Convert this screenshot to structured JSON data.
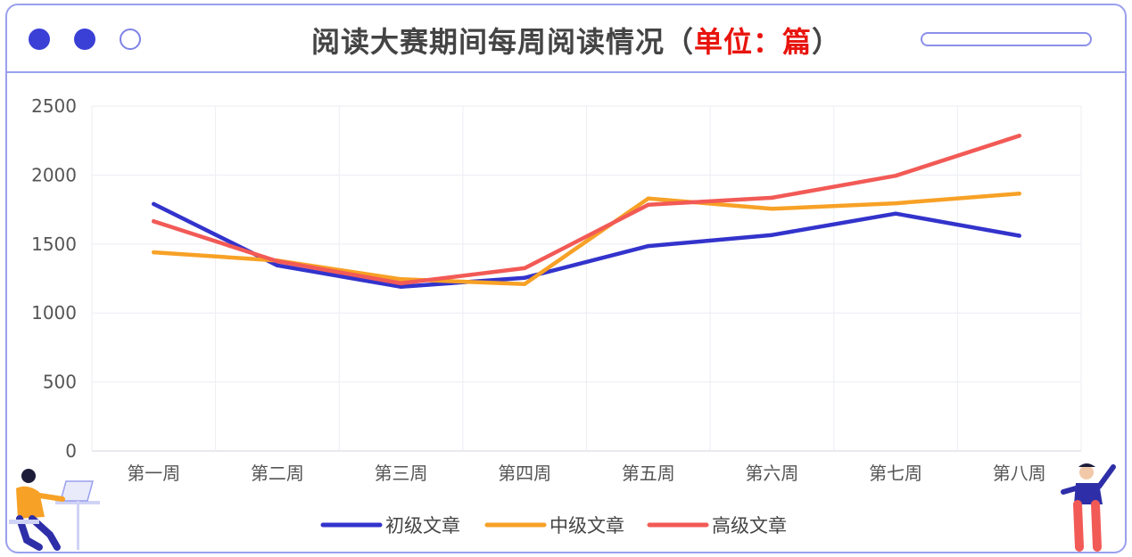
{
  "header": {
    "title_main": "阅读大赛期间每周阅读情况",
    "title_open": "（",
    "title_unit": "单位：",
    "title_unit_value": "篇",
    "title_close": "）"
  },
  "colors": {
    "frame": "#9aa0ee",
    "accent_dot": "#3a3fd6",
    "title_red": "#e8140d"
  },
  "chart_data": {
    "type": "line",
    "title": "阅读大赛期间每周阅读情况（单位：篇）",
    "categories": [
      "第一周",
      "第二周",
      "第三周",
      "第四周",
      "第五周",
      "第六周",
      "第七周",
      "第八周"
    ],
    "ylim": [
      0,
      2500
    ],
    "yticks": [
      0,
      500,
      1000,
      1500,
      2000,
      2500
    ],
    "grid": true,
    "legend_position": "bottom",
    "series": [
      {
        "name": "初级文章",
        "color": "#3333cc",
        "values": [
          1790,
          1345,
          1190,
          1255,
          1485,
          1565,
          1720,
          1560
        ]
      },
      {
        "name": "中级文章",
        "color": "#f7a126",
        "values": [
          1440,
          1380,
          1245,
          1210,
          1830,
          1755,
          1795,
          1865
        ]
      },
      {
        "name": "高级文章",
        "color": "#f25a56",
        "values": [
          1665,
          1375,
          1215,
          1325,
          1785,
          1835,
          1995,
          2285
        ]
      }
    ]
  }
}
